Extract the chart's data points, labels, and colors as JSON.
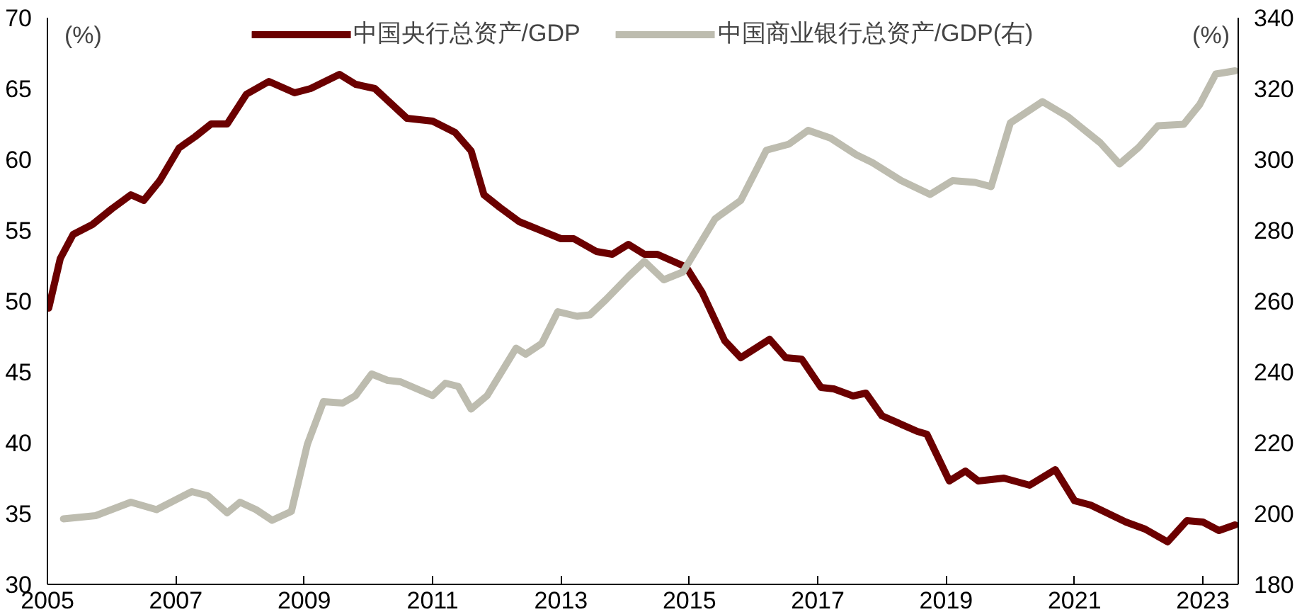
{
  "chart_data": {
    "type": "line",
    "ylabel": "(%)",
    "y2label": "(%)",
    "xlim": [
      2005,
      2023.55
    ],
    "xticks": [
      2005,
      2007,
      2009,
      2011,
      2013,
      2015,
      2017,
      2019,
      2021,
      2023
    ],
    "ylim": [
      30,
      70
    ],
    "yticks": [
      30,
      35,
      40,
      45,
      50,
      55,
      60,
      65,
      70
    ],
    "y2lim": [
      180,
      340
    ],
    "y2ticks": [
      180,
      200,
      220,
      240,
      260,
      280,
      300,
      320,
      340
    ],
    "grid": false,
    "legend": "top",
    "marker": "none",
    "line_style": "solid",
    "series": [
      {
        "name": "中国央行总资产/GDP",
        "color": "#6b0000",
        "x": [
          2005.02,
          2005.2,
          2005.4,
          2005.7,
          2006.0,
          2006.3,
          2006.5,
          2006.75,
          2007.05,
          2007.3,
          2007.55,
          2007.8,
          2008.1,
          2008.45,
          2008.85,
          2009.1,
          2009.55,
          2009.8,
          2010.1,
          2010.6,
          2011.0,
          2011.35,
          2011.6,
          2011.8,
          2012.05,
          2012.35,
          2013.0,
          2013.2,
          2013.55,
          2013.8,
          2014.05,
          2014.3,
          2014.5,
          2014.95,
          2015.2,
          2015.55,
          2015.8,
          2016.25,
          2016.5,
          2016.75,
          2017.05,
          2017.25,
          2017.55,
          2017.75,
          2018.0,
          2018.55,
          2018.7,
          2019.05,
          2019.3,
          2019.5,
          2019.9,
          2020.3,
          2020.7,
          2021.0,
          2021.25,
          2021.8,
          2022.1,
          2022.45,
          2022.75,
          2023.0,
          2023.25,
          2023.5
        ],
        "values": [
          49.5,
          53.0,
          54.7,
          55.4,
          56.5,
          57.5,
          57.1,
          58.5,
          60.8,
          61.6,
          62.5,
          62.5,
          64.6,
          65.5,
          64.7,
          65.0,
          66.0,
          65.3,
          65.0,
          62.9,
          62.7,
          61.9,
          60.6,
          57.5,
          56.6,
          55.6,
          54.4,
          54.4,
          53.5,
          53.3,
          54.0,
          53.3,
          53.3,
          52.4,
          50.6,
          47.2,
          46.0,
          47.3,
          46.0,
          45.9,
          43.9,
          43.8,
          43.3,
          43.5,
          41.9,
          40.8,
          40.6,
          37.3,
          38.0,
          37.3,
          37.5,
          37.0,
          38.1,
          35.9,
          35.6,
          34.4,
          33.9,
          33.0,
          34.5,
          34.4,
          33.8,
          34.2
        ]
      },
      {
        "name": "中国商业银行总资产/GDP(右)",
        "color": "#bdbcaf",
        "axis": "y2",
        "x": [
          2005.25,
          2005.75,
          2006.3,
          2006.7,
          2007.25,
          2007.5,
          2007.8,
          2008.0,
          2008.25,
          2008.5,
          2008.8,
          2009.05,
          2009.3,
          2009.6,
          2009.8,
          2010.05,
          2010.3,
          2010.5,
          2011.0,
          2011.2,
          2011.4,
          2011.6,
          2011.85,
          2012.3,
          2012.45,
          2012.7,
          2012.95,
          2013.25,
          2013.45,
          2013.7,
          2014.05,
          2014.3,
          2014.6,
          2014.9,
          2015.4,
          2015.8,
          2016.2,
          2016.55,
          2016.85,
          2017.2,
          2017.6,
          2017.85,
          2018.3,
          2018.75,
          2019.1,
          2019.45,
          2019.7,
          2020.0,
          2020.5,
          2020.9,
          2021.4,
          2021.7,
          2022.0,
          2022.3,
          2022.7,
          2022.95,
          2023.2,
          2023.5
        ],
        "values": [
          198.5,
          199.4,
          203.2,
          201.1,
          206.2,
          205.0,
          200.2,
          203.2,
          201.1,
          198.1,
          200.6,
          219.6,
          231.6,
          231.2,
          233.3,
          239.4,
          237.6,
          237.2,
          233.3,
          236.8,
          235.9,
          229.5,
          233.3,
          246.7,
          245.0,
          248.0,
          257.0,
          255.7,
          256.1,
          260.4,
          266.9,
          271.2,
          266.0,
          268.2,
          283.2,
          288.4,
          302.6,
          304.3,
          308.2,
          306.0,
          301.3,
          299.1,
          294.0,
          290.1,
          294.0,
          293.5,
          292.3,
          310.3,
          316.3,
          312.0,
          304.7,
          298.7,
          303.4,
          309.5,
          309.9,
          315.5,
          324.1,
          325.0
        ]
      }
    ]
  }
}
